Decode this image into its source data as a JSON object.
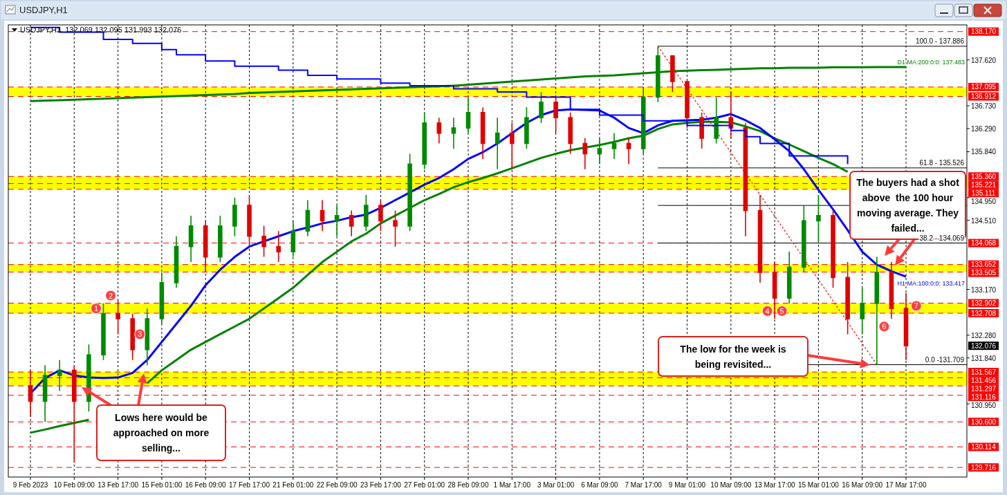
{
  "chart_data": {
    "type": "candlestick",
    "title": "USDJPY,H1",
    "subtitle": "USDJPY,H1  132.069 132.095 131.993 132.076",
    "categories": [
      "9 Feb 2023",
      null,
      null,
      "10 Feb 09:00",
      null,
      null,
      "13 Feb 17:00",
      null,
      null,
      "15 Feb 01:00",
      null,
      null,
      "16 Feb 09:00",
      null,
      null,
      "17 Feb 17:00",
      null,
      null,
      "21 Feb 01:00",
      null,
      null,
      "22 Feb 09:00",
      null,
      null,
      "23 Feb 17:00",
      null,
      null,
      "27 Feb 01:00",
      null,
      null,
      "28 Feb 09:00",
      null,
      null,
      "1 Mar 17:00",
      null,
      null,
      "3 Mar 01:00",
      null,
      null,
      "6 Mar 09:00",
      null,
      null,
      "7 Mar 17:00",
      null,
      null,
      "9 Mar 01:00",
      null,
      null,
      "10 Mar 09:00",
      null,
      null,
      "13 Mar 17:00",
      null,
      null,
      "15 Mar 01:00",
      null,
      null,
      "16 Mar 09:00",
      null,
      null,
      "17 Mar 17:00"
    ],
    "ohlc": [
      [
        131.3,
        131.6,
        130.7,
        131.0
      ],
      [
        131.0,
        131.7,
        130.6,
        131.5
      ],
      [
        131.5,
        131.8,
        131.2,
        131.6
      ],
      [
        131.6,
        131.7,
        129.81,
        131.0
      ],
      [
        131.0,
        132.1,
        130.8,
        131.9
      ],
      [
        131.9,
        132.9,
        131.8,
        132.7
      ],
      [
        132.7,
        132.95,
        132.3,
        132.6
      ],
      [
        132.6,
        132.7,
        131.8,
        132.0
      ],
      [
        132.0,
        132.8,
        131.7,
        132.6
      ],
      [
        132.6,
        133.5,
        132.5,
        133.3
      ],
      [
        133.3,
        134.2,
        133.2,
        134.0
      ],
      [
        134.0,
        134.6,
        133.7,
        134.4
      ],
      [
        134.4,
        134.5,
        133.5,
        133.8
      ],
      [
        133.8,
        134.6,
        133.7,
        134.4
      ],
      [
        134.4,
        134.95,
        134.2,
        134.8
      ],
      [
        134.8,
        135.0,
        134.0,
        134.2
      ],
      [
        134.2,
        134.4,
        133.8,
        134.0
      ],
      [
        134.0,
        134.3,
        133.7,
        133.9
      ],
      [
        133.9,
        134.5,
        133.8,
        134.3
      ],
      [
        134.3,
        134.9,
        134.2,
        134.7
      ],
      [
        134.7,
        134.9,
        134.3,
        134.5
      ],
      [
        134.5,
        134.8,
        134.2,
        134.6
      ],
      [
        134.6,
        134.7,
        134.2,
        134.4
      ],
      [
        134.4,
        135.0,
        134.3,
        134.8
      ],
      [
        134.8,
        134.9,
        134.3,
        134.5
      ],
      [
        134.5,
        134.7,
        134.0,
        134.4
      ],
      [
        134.4,
        135.8,
        134.3,
        135.6
      ],
      [
        135.6,
        136.6,
        135.5,
        136.4
      ],
      [
        136.4,
        136.5,
        136.0,
        136.2
      ],
      [
        136.2,
        136.5,
        135.9,
        136.3
      ],
      [
        136.3,
        136.9,
        136.2,
        136.6
      ],
      [
        136.6,
        136.7,
        135.7,
        136.0
      ],
      [
        136.0,
        136.5,
        135.5,
        136.2
      ],
      [
        136.2,
        136.4,
        135.5,
        136.0
      ],
      [
        136.0,
        136.7,
        135.9,
        136.5
      ],
      [
        136.5,
        137.0,
        136.4,
        136.8
      ],
      [
        136.8,
        136.9,
        136.2,
        136.5
      ],
      [
        136.5,
        136.6,
        135.8,
        136.0
      ],
      [
        136.0,
        136.1,
        135.5,
        135.8
      ],
      [
        135.8,
        136.1,
        135.6,
        135.9
      ],
      [
        135.9,
        136.2,
        135.7,
        136.0
      ],
      [
        136.0,
        136.1,
        135.6,
        135.9
      ],
      [
        135.9,
        137.1,
        135.8,
        136.9
      ],
      [
        136.9,
        137.886,
        136.8,
        137.7
      ],
      [
        137.7,
        137.7,
        137.0,
        137.2
      ],
      [
        137.2,
        137.2,
        136.3,
        136.5
      ],
      [
        136.5,
        136.6,
        135.9,
        136.1
      ],
      [
        136.1,
        136.9,
        136.0,
        136.5
      ],
      [
        136.5,
        137.0,
        136.1,
        136.3
      ],
      [
        136.3,
        136.4,
        134.2,
        134.7
      ],
      [
        134.7,
        135.0,
        133.3,
        133.5
      ],
      [
        133.5,
        133.7,
        132.6,
        133.0
      ],
      [
        133.0,
        133.9,
        132.9,
        133.6
      ],
      [
        133.6,
        134.8,
        133.5,
        134.5
      ],
      [
        134.5,
        135.0,
        134.1,
        134.6
      ],
      [
        134.6,
        134.7,
        133.2,
        133.4
      ],
      [
        133.4,
        133.7,
        132.3,
        132.6
      ],
      [
        132.6,
        133.2,
        132.3,
        132.9
      ],
      [
        132.9,
        133.8,
        131.709,
        133.5
      ],
      [
        133.5,
        133.7,
        132.6,
        132.8
      ],
      [
        132.8,
        133.1,
        131.8,
        132.076
      ]
    ],
    "series": [
      {
        "type": "step",
        "color": "#0000ff",
        "values": [
          138.25,
          138.25,
          138.16,
          138.16,
          138.16,
          138.02,
          138.02,
          137.94,
          137.94,
          137.82,
          137.72,
          137.72,
          137.6,
          137.6,
          137.5,
          137.5,
          137.5,
          137.42,
          137.42,
          137.32,
          137.32,
          137.25,
          137.25,
          137.25,
          137.17,
          137.17,
          137.12,
          137.12,
          137.12,
          137.06,
          137.06,
          137.06,
          137.0,
          137.0,
          136.9,
          136.9,
          136.9,
          136.66,
          136.66,
          136.55,
          136.55,
          136.55,
          136.44,
          136.44,
          136.44,
          136.35,
          136.35,
          136.35,
          136.25,
          136.13,
          136.0,
          136.0,
          135.76,
          135.76,
          135.76,
          135.76,
          135.6,
          null,
          null,
          null,
          null
        ]
      },
      {
        "type": "line",
        "name": "D1 MA:200:0:0: 137.483",
        "color": "#008000",
        "values": [
          136.82,
          136.83,
          136.84,
          136.85,
          136.86,
          136.87,
          136.88,
          136.89,
          136.9,
          136.91,
          136.92,
          136.93,
          136.94,
          136.95,
          136.96,
          136.98,
          136.99,
          137.0,
          137.01,
          137.02,
          137.03,
          137.04,
          137.05,
          137.06,
          137.07,
          137.08,
          137.09,
          137.1,
          137.11,
          137.12,
          137.14,
          137.16,
          137.18,
          137.2,
          137.22,
          137.24,
          137.26,
          137.28,
          137.3,
          137.31,
          137.32,
          137.34,
          137.36,
          137.38,
          137.4,
          137.41,
          137.42,
          137.43,
          137.44,
          137.45,
          137.46,
          137.46,
          137.47,
          137.47,
          137.47,
          137.48,
          137.48,
          137.48,
          137.483,
          137.483,
          137.483
        ]
      },
      {
        "type": "line",
        "color": "#008000",
        "values": [
          130.39,
          130.45,
          130.52,
          130.58,
          130.64,
          null,
          null,
          null,
          131.35,
          131.6,
          131.8,
          132.0,
          132.15,
          132.3,
          132.45,
          132.6,
          132.8,
          133.0,
          133.2,
          133.45,
          133.7,
          133.9,
          134.1,
          134.25,
          134.45,
          134.6,
          134.75,
          134.9,
          135.02,
          135.15,
          135.25,
          135.33,
          135.42,
          135.52,
          135.62,
          135.72,
          135.8,
          135.87,
          135.92,
          135.97,
          136.03,
          136.1,
          136.15,
          136.28,
          136.37,
          136.4,
          136.42,
          136.42,
          136.41,
          136.33,
          136.24,
          136.1,
          135.98,
          135.85,
          135.72,
          135.6,
          135.45,
          null,
          null,
          null,
          null
        ]
      },
      {
        "type": "line",
        "name": "H1 MA:100:0:0: 133.417",
        "color": "#0000ff",
        "values": [
          131.15,
          131.45,
          131.6,
          131.5,
          131.46,
          131.45,
          131.46,
          131.55,
          131.8,
          132.15,
          132.5,
          132.85,
          133.25,
          133.55,
          133.8,
          134.0,
          134.1,
          134.2,
          134.3,
          134.37,
          134.45,
          134.5,
          134.57,
          134.62,
          134.75,
          134.9,
          135.05,
          135.2,
          135.33,
          135.5,
          135.7,
          135.83,
          136.0,
          136.2,
          136.4,
          136.55,
          136.64,
          136.66,
          136.65,
          136.64,
          136.5,
          136.3,
          136.2,
          136.35,
          136.44,
          136.45,
          136.46,
          136.5,
          136.57,
          136.45,
          136.3,
          136.08,
          135.85,
          135.5,
          135.1,
          134.72,
          134.32,
          133.9,
          133.65,
          133.52,
          133.417
        ]
      },
      {
        "type": "line",
        "color": "#ff0000",
        "line_style": "dotted",
        "values": [
          null,
          null,
          null,
          null,
          null,
          null,
          null,
          null,
          null,
          null,
          null,
          null,
          null,
          null,
          null,
          null,
          null,
          null,
          null,
          null,
          null,
          null,
          null,
          null,
          null,
          null,
          null,
          null,
          null,
          null,
          null,
          null,
          null,
          null,
          null,
          null,
          null,
          null,
          null,
          null,
          null,
          null,
          null,
          137.886,
          null,
          null,
          null,
          null,
          null,
          null,
          null,
          null,
          null,
          null,
          null,
          null,
          null,
          null,
          131.709,
          null,
          null
        ]
      }
    ],
    "ylim": [
      129.53,
      138.3
    ],
    "yticks": [
      {
        "value": 137.62,
        "label": "137.620"
      },
      {
        "value": 136.73,
        "label": "136.730"
      },
      {
        "value": 136.29,
        "label": "136.290"
      },
      {
        "value": 135.84,
        "label": "135.840"
      },
      {
        "value": 134.95,
        "label": "134.950"
      },
      {
        "value": 134.51,
        "label": "134.510"
      },
      {
        "value": 133.17,
        "label": "133.170"
      },
      {
        "value": 132.28,
        "label": "132.280"
      },
      {
        "value": 131.84,
        "label": "131.840"
      },
      {
        "value": 130.95,
        "label": "130.950"
      }
    ],
    "grid": "x",
    "bands": [
      {
        "axis": "y",
        "from": 136.912,
        "to": 137.095,
        "color": "#ffff00"
      },
      {
        "axis": "y",
        "from": 135.111,
        "to": 135.36,
        "color": "#ffff00"
      },
      {
        "axis": "y",
        "from": 133.505,
        "to": 133.652,
        "color": "#ffff00"
      },
      {
        "axis": "y",
        "from": 132.708,
        "to": 132.902,
        "color": "#ffff00"
      },
      {
        "axis": "y",
        "from": 131.297,
        "to": 131.567,
        "color": "#ffff00"
      }
    ],
    "ref_lines": [
      {
        "axis": "y",
        "value": 138.17,
        "label": "138.170",
        "color": "#ff0000",
        "line_style": "dashed"
      },
      {
        "axis": "y",
        "value": 137.095,
        "label": "137.095",
        "color": "#ff0000",
        "line_style": "dashed"
      },
      {
        "axis": "y",
        "value": 136.912,
        "label": "136.912",
        "color": "#ff0000",
        "line_style": "dashed"
      },
      {
        "axis": "y",
        "value": 135.36,
        "label": "135.360",
        "color": "#ff0000",
        "line_style": "dashed"
      },
      {
        "axis": "y",
        "value": 135.221,
        "label": "135.221",
        "color": "#ff0000",
        "line_style": "dashed"
      },
      {
        "axis": "y",
        "value": 135.111,
        "label": "135.111",
        "color": "#ff0000",
        "line_style": "dashed"
      },
      {
        "axis": "y",
        "value": 134.068,
        "label": "134.068",
        "color": "#ff0000",
        "line_style": "dashed"
      },
      {
        "axis": "y",
        "value": 133.652,
        "label": "133.652",
        "color": "#ff0000",
        "line_style": "dashed"
      },
      {
        "axis": "y",
        "value": 133.505,
        "label": "133.505",
        "color": "#ff0000",
        "line_style": "dashed"
      },
      {
        "axis": "y",
        "value": 132.902,
        "label": "132.902",
        "color": "#ff0000",
        "line_style": "dashed"
      },
      {
        "axis": "y",
        "value": 132.708,
        "label": "132.708",
        "color": "#ff0000",
        "line_style": "dashed"
      },
      {
        "axis": "y",
        "value": 131.567,
        "label": "131.567",
        "color": "#ff0000",
        "line_style": "dashed"
      },
      {
        "axis": "y",
        "value": 131.456,
        "label": "131.456",
        "color": "#ff0000",
        "line_style": "dashed"
      },
      {
        "axis": "y",
        "value": 131.297,
        "label": "131.297",
        "color": "#ff0000",
        "line_style": "dashed"
      },
      {
        "axis": "y",
        "value": 131.116,
        "label": "131.116",
        "color": "#ff0000",
        "line_style": "dashed"
      },
      {
        "axis": "y",
        "value": 130.6,
        "label": "130.600",
        "color": "#ff0000",
        "line_style": "dashed"
      },
      {
        "axis": "y",
        "value": 130.114,
        "label": "130.114",
        "color": "#ff0000",
        "line_style": "dashed"
      },
      {
        "axis": "y",
        "value": 129.716,
        "label": "129.716",
        "color": "#ff0000",
        "line_style": "dashed"
      },
      {
        "axis": "y",
        "value": 137.886,
        "label": null,
        "color": "#000000",
        "line_style": "solid"
      },
      {
        "axis": "y",
        "value": 135.526,
        "label": null,
        "color": "#000000",
        "line_style": "solid"
      },
      {
        "axis": "y",
        "value": 134.798,
        "label": null,
        "color": "#000000",
        "line_style": "solid"
      },
      {
        "axis": "y",
        "value": 134.069,
        "label": null,
        "color": "#000000",
        "line_style": "solid"
      },
      {
        "axis": "y",
        "value": 131.709,
        "label": null,
        "color": "#000000",
        "line_style": "solid"
      }
    ],
    "annotations": [
      "1",
      "2",
      "3",
      "4",
      "5",
      "6",
      "7",
      "132.076",
      "The buyers had a shot above  the 100 hour moving average. They failed...",
      "The low for the week is being revisited...",
      "Lows here would be approached on more selling...",
      {
        "text": "100.0 - 137.886",
        "y": 137.886
      },
      {
        "text": "61.8 - 135.526",
        "y": 135.526
      },
      {
        "text": "38.2 - 134.069",
        "y": 134.069
      },
      {
        "text": "0.0 -131.709",
        "y": 131.709
      }
    ]
  }
}
